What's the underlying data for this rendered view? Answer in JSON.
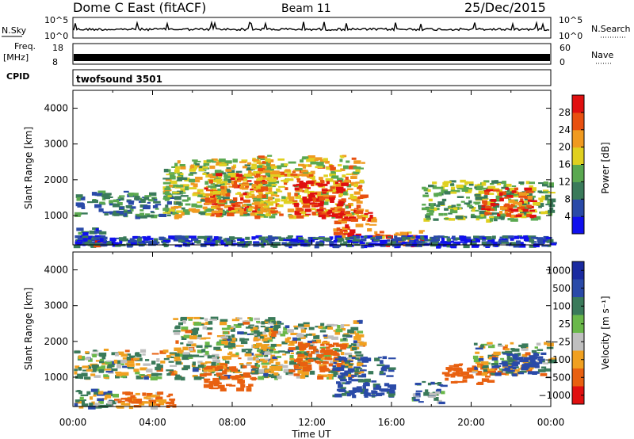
{
  "header": {
    "station": "Dome C East (fitACF)",
    "beam": "Beam 11",
    "date": "25/Dec/2015"
  },
  "ancillary": {
    "nsky_label": "N.Sky",
    "nsky_top": "10^5",
    "nsky_bottom": "10^0",
    "nsearch_label": "N.Search",
    "nsearch_top": "10^5",
    "nsearch_bottom": "10^0",
    "freq_label": "Freq.",
    "freq_unit": "[MHz]",
    "freq_top": "18",
    "freq_bottom": "8",
    "nave_label": "Nave",
    "nave_top": "60",
    "nave_bottom": "0",
    "cpid_label": "CPID",
    "cpid_value": "twofsound 3501"
  },
  "colors": {
    "power_scale": [
      "#1010ee",
      "#2a4aa8",
      "#3a7a5a",
      "#5aa850",
      "#e0d020",
      "#f09a20",
      "#e85010",
      "#e01010"
    ],
    "velocity_scale": [
      "#1a2aa0",
      "#2a4aa8",
      "#3a7a5a",
      "#6ab84a",
      "#bfbfbf",
      "#f0a020",
      "#e86010",
      "#e01010"
    ]
  },
  "chart_data": [
    {
      "type": "heatmap",
      "panel": "power",
      "xlabel": "",
      "ylabel": "Slant Range [km]",
      "x_ticks": [
        "00:00",
        "04:00",
        "08:00",
        "12:00",
        "16:00",
        "20:00",
        "00:00"
      ],
      "y_ticks": [
        1000,
        2000,
        3000,
        4000
      ],
      "ylim": [
        180,
        4500
      ],
      "colorbar_label": "Power [dB]",
      "colorbar_ticks": [
        "4",
        "8",
        "12",
        "16",
        "20",
        "24",
        "28"
      ],
      "colorbar_range": [
        0,
        32
      ],
      "echo_regions": [
        {
          "t0": 0.0,
          "t1": 1.5,
          "r0": 180,
          "r1": 700,
          "level": 8
        },
        {
          "t0": 1.0,
          "t1": 1.6,
          "r0": 180,
          "r1": 400,
          "level": 28
        },
        {
          "t0": 0.0,
          "t1": 5.0,
          "r0": 1000,
          "r1": 1700,
          "level": 10
        },
        {
          "t0": 4.5,
          "t1": 10.0,
          "r0": 1000,
          "r1": 2600,
          "level": 16
        },
        {
          "t0": 6.5,
          "t1": 9.5,
          "r0": 1000,
          "r1": 2200,
          "level": 24
        },
        {
          "t0": 9.0,
          "t1": 14.5,
          "r0": 1000,
          "r1": 2700,
          "level": 20
        },
        {
          "t0": 11.0,
          "t1": 13.5,
          "r0": 1000,
          "r1": 2000,
          "level": 30
        },
        {
          "t0": 13.0,
          "t1": 15.0,
          "r0": 400,
          "r1": 1200,
          "level": 26
        },
        {
          "t0": 15.0,
          "t1": 17.5,
          "r0": 180,
          "r1": 600,
          "level": 24
        },
        {
          "t0": 17.5,
          "t1": 24.0,
          "r0": 900,
          "r1": 2000,
          "level": 14
        },
        {
          "t0": 20.5,
          "t1": 23.0,
          "r0": 1000,
          "r1": 1800,
          "level": 26
        },
        {
          "t0": 0.0,
          "t1": 24.0,
          "r0": 180,
          "r1": 450,
          "level": 6
        }
      ]
    },
    {
      "type": "heatmap",
      "panel": "velocity",
      "xlabel": "Time UT",
      "ylabel": "Slant Range [km]",
      "x_ticks": [
        "00:00",
        "04:00",
        "08:00",
        "12:00",
        "16:00",
        "20:00",
        "00:00"
      ],
      "y_ticks": [
        1000,
        2000,
        3000,
        4000
      ],
      "ylim": [
        180,
        4500
      ],
      "colorbar_label": "Velocity [m s⁻¹]",
      "colorbar_ticks": [
        "1000",
        "500",
        "100",
        "25",
        "−25",
        "−100",
        "−500",
        "−1000"
      ],
      "echo_regions": [
        {
          "t0": 0.0,
          "t1": 5.0,
          "r0": 1000,
          "r1": 1800,
          "level": 0
        },
        {
          "t0": 0.0,
          "t1": 2.0,
          "r0": 180,
          "r1": 700,
          "level": 50
        },
        {
          "t0": 2.0,
          "t1": 5.0,
          "r0": 200,
          "r1": 600,
          "level": -120
        },
        {
          "t0": 5.0,
          "t1": 10.0,
          "r0": 1000,
          "r1": 2700,
          "level": 0
        },
        {
          "t0": 6.5,
          "t1": 9.0,
          "r0": 700,
          "r1": 1400,
          "level": -200
        },
        {
          "t0": 9.0,
          "t1": 14.5,
          "r0": 1000,
          "r1": 2600,
          "level": 0
        },
        {
          "t0": 11.0,
          "t1": 13.5,
          "r0": 1200,
          "r1": 2000,
          "level": -300
        },
        {
          "t0": 13.0,
          "t1": 16.0,
          "r0": 500,
          "r1": 1600,
          "level": 150
        },
        {
          "t0": 17.0,
          "t1": 18.5,
          "r0": 300,
          "r1": 900,
          "level": 60
        },
        {
          "t0": 18.5,
          "t1": 21.0,
          "r0": 800,
          "r1": 1400,
          "level": -300
        },
        {
          "t0": 20.0,
          "t1": 24.0,
          "r0": 1100,
          "r1": 2000,
          "level": 0
        },
        {
          "t0": 21.0,
          "t1": 23.5,
          "r0": 1100,
          "r1": 1700,
          "level": 200
        }
      ]
    }
  ]
}
